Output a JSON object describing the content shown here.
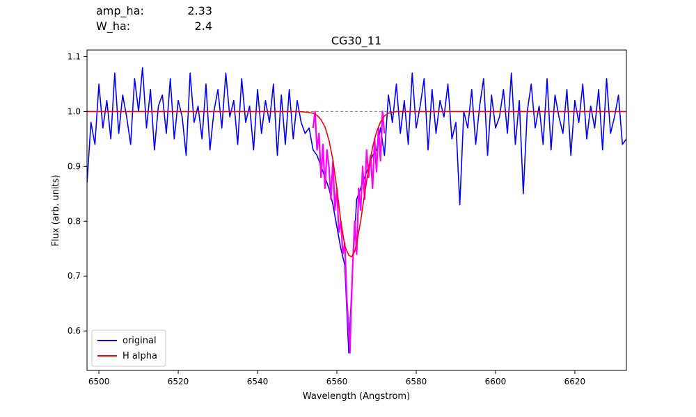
{
  "annotations": [
    {
      "label": "amp_ha:",
      "value": "2.33"
    },
    {
      "label": "W_ha:",
      "value": "2.4"
    }
  ],
  "chart_data": {
    "type": "line",
    "title": "CG30_11",
    "xlabel": "Wavelength (Angstrom)",
    "ylabel": "Flux (arb. units)",
    "xlim": [
      6497,
      6633
    ],
    "ylim": [
      0.528,
      1.112
    ],
    "xticks": [
      6500,
      6520,
      6540,
      6560,
      6580,
      6600,
      6620
    ],
    "yticks": [
      0.6,
      0.7,
      0.8,
      0.9,
      1.0,
      1.1
    ],
    "xtick_labels": [
      "6500",
      "6520",
      "6540",
      "6560",
      "6580",
      "6600",
      "6620"
    ],
    "ytick_labels": [
      "0.6",
      "0.7",
      "0.8",
      "0.9",
      "1.0",
      "1.1"
    ],
    "grid": false,
    "legend_position": "lower-left",
    "reference_line": {
      "y": 1.0,
      "style": "dashed",
      "color": "#808080"
    },
    "series": [
      {
        "name": "original",
        "color": "#0000ff",
        "x": [
          6497,
          6498,
          6499,
          6500,
          6501,
          6502,
          6503,
          6504,
          6505,
          6506,
          6507,
          6508,
          6509,
          6510,
          6511,
          6512,
          6513,
          6514,
          6515,
          6516,
          6517,
          6518,
          6519,
          6520,
          6521,
          6522,
          6523,
          6524,
          6525,
          6526,
          6527,
          6528,
          6529,
          6530,
          6531,
          6532,
          6533,
          6534,
          6535,
          6536,
          6537,
          6538,
          6539,
          6540,
          6541,
          6542,
          6543,
          6544,
          6545,
          6546,
          6547,
          6548,
          6549,
          6550,
          6551,
          6552,
          6553,
          6554,
          6555,
          6556,
          6557,
          6558,
          6559,
          6560,
          6561,
          6562,
          6563,
          6564,
          6565,
          6566,
          6567,
          6568,
          6569,
          6570,
          6571,
          6572,
          6573,
          6574,
          6575,
          6576,
          6577,
          6578,
          6579,
          6580,
          6581,
          6582,
          6583,
          6584,
          6585,
          6586,
          6587,
          6588,
          6589,
          6590,
          6591,
          6592,
          6593,
          6594,
          6595,
          6596,
          6597,
          6598,
          6599,
          6600,
          6601,
          6602,
          6603,
          6604,
          6605,
          6606,
          6607,
          6608,
          6609,
          6610,
          6611,
          6612,
          6613,
          6614,
          6615,
          6616,
          6617,
          6618,
          6619,
          6620,
          6621,
          6622,
          6623,
          6624,
          6625,
          6626,
          6627,
          6628,
          6629,
          6630,
          6631,
          6632,
          6633
        ],
        "y": [
          0.87,
          0.98,
          0.94,
          1.05,
          0.97,
          1.02,
          0.95,
          1.07,
          0.96,
          1.03,
          0.99,
          0.94,
          1.06,
          1.0,
          1.08,
          0.97,
          1.04,
          0.93,
          1.01,
          1.03,
          0.96,
          1.06,
          0.95,
          1.02,
          0.99,
          0.92,
          1.07,
          0.98,
          1.01,
          0.95,
          1.05,
          0.93,
          1.0,
          1.04,
          0.97,
          1.07,
          0.99,
          1.02,
          0.94,
          1.06,
          0.98,
          1.01,
          0.93,
          1.04,
          0.96,
          1.02,
          0.98,
          1.05,
          0.92,
          1.03,
          0.94,
          1.04,
          0.95,
          1.02,
          0.98,
          0.96,
          0.97,
          0.93,
          0.92,
          0.9,
          0.88,
          0.86,
          0.83,
          0.79,
          0.75,
          0.72,
          0.56,
          0.72,
          0.84,
          0.86,
          0.88,
          0.9,
          0.92,
          0.93,
          0.97,
          0.92,
          1.03,
          0.98,
          1.05,
          0.96,
          1.02,
          0.94,
          1.07,
          0.97,
          1.01,
          1.06,
          0.93,
          1.04,
          0.96,
          1.02,
          0.99,
          1.05,
          0.95,
          0.98,
          0.83,
          1.0,
          0.97,
          1.04,
          0.94,
          1.01,
          1.06,
          0.92,
          1.03,
          0.97,
          0.99,
          1.04,
          0.96,
          1.07,
          0.94,
          1.02,
          0.85,
          1.0,
          1.05,
          0.97,
          1.01,
          0.94,
          1.06,
          0.93,
          1.03,
          0.99,
          0.96,
          1.04,
          0.92,
          1.02,
          0.98,
          1.05,
          0.95,
          1.01,
          0.97,
          1.04,
          0.93,
          1.06,
          0.96,
          0.99,
          1.03,
          0.94,
          0.95
        ]
      },
      {
        "name": "",
        "color": "#ff00ff",
        "x": [
          6554,
          6554.5,
          6555,
          6555.5,
          6556,
          6556.5,
          6557,
          6557.5,
          6558,
          6558.5,
          6559,
          6559.5,
          6560,
          6560.5,
          6561,
          6561.5,
          6562,
          6562.5,
          6563,
          6563.3,
          6563.6,
          6564,
          6564.5,
          6565,
          6565.5,
          6566,
          6566.5,
          6567,
          6567.5,
          6568,
          6568.5,
          6569,
          6569.5,
          6570,
          6570.5,
          6571,
          6571.5,
          6572
        ],
        "y": [
          0.97,
          1.0,
          0.93,
          0.96,
          0.88,
          0.94,
          0.86,
          0.93,
          0.9,
          0.84,
          0.91,
          0.82,
          0.86,
          0.78,
          0.8,
          0.74,
          0.76,
          0.66,
          0.6,
          0.56,
          0.64,
          0.72,
          0.8,
          0.74,
          0.86,
          0.82,
          0.9,
          0.84,
          0.93,
          0.88,
          0.92,
          0.86,
          0.95,
          0.89,
          0.97,
          0.91,
          1.0,
          0.96
        ]
      },
      {
        "name": "H alpha",
        "color": "#ff0000",
        "x": [
          6497,
          6540,
          6550,
          6552,
          6554,
          6555,
          6556,
          6557,
          6558,
          6559,
          6560,
          6561,
          6562,
          6563,
          6563.7,
          6564.5,
          6565,
          6566,
          6567,
          6568,
          6569,
          6570,
          6571,
          6572,
          6573,
          6575,
          6580,
          6600,
          6633
        ],
        "y": [
          1.0,
          1.0,
          1.0,
          0.999,
          0.997,
          0.993,
          0.985,
          0.972,
          0.948,
          0.912,
          0.86,
          0.8,
          0.755,
          0.738,
          0.735,
          0.745,
          0.76,
          0.8,
          0.85,
          0.895,
          0.935,
          0.963,
          0.981,
          0.992,
          0.997,
          1.0,
          1.0,
          1.0,
          1.0
        ]
      }
    ]
  }
}
